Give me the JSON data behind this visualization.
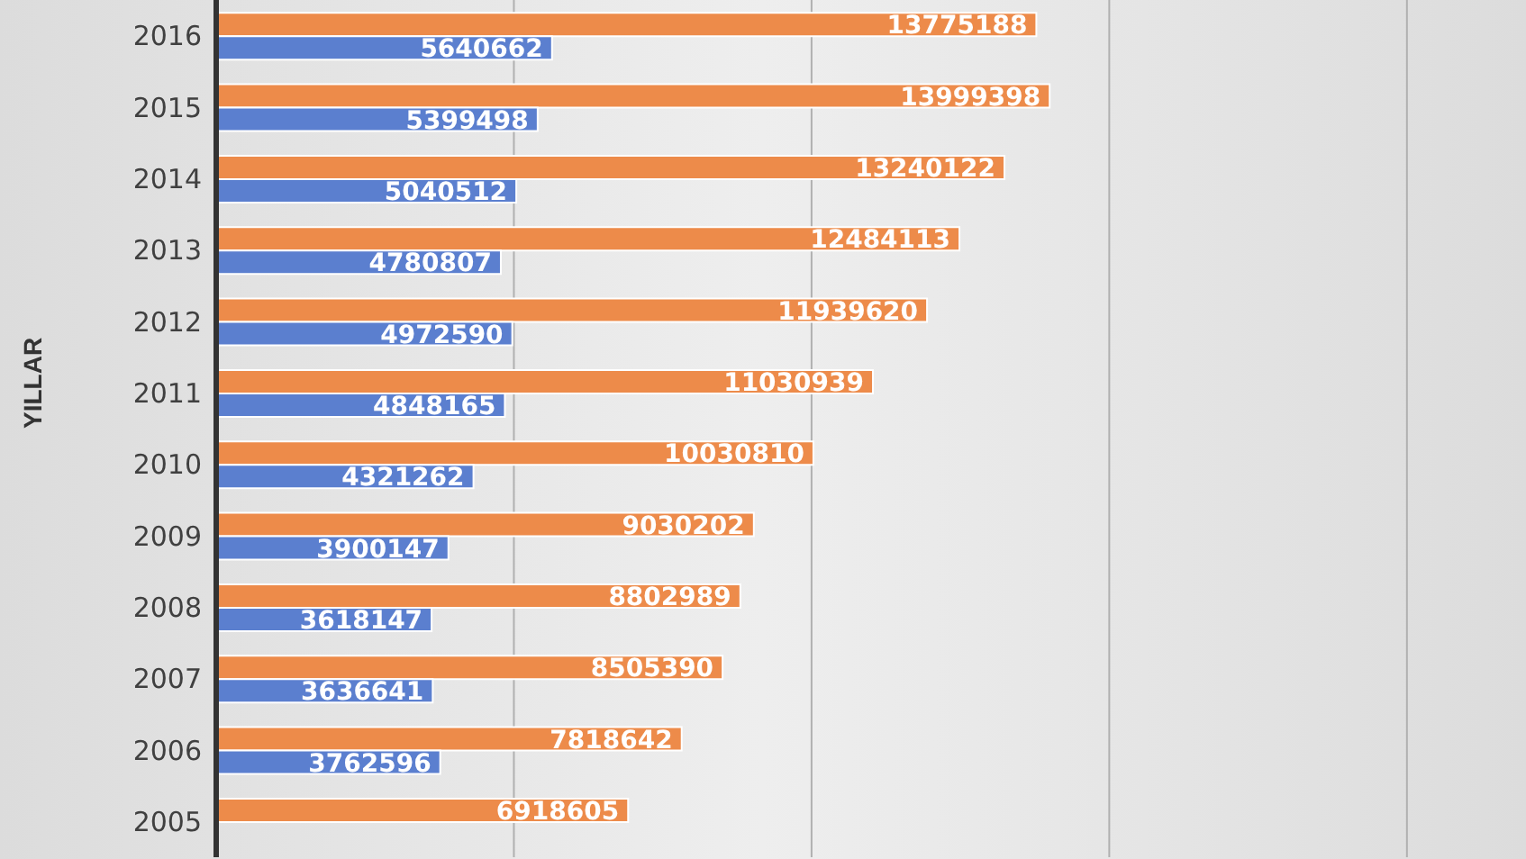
{
  "chart_data": {
    "type": "bar",
    "orientation": "horizontal",
    "ylabel": "YILLAR",
    "categories": [
      "2016",
      "2015",
      "2014",
      "2013",
      "2012",
      "2011",
      "2010",
      "2009",
      "2008",
      "2007",
      "2006",
      "2005"
    ],
    "series": [
      {
        "color": "#ed8b4a",
        "values": [
          13775188,
          13999398,
          13240122,
          12484113,
          11939620,
          11030939,
          10030810,
          9030202,
          8802989,
          8505390,
          7818642,
          6918605
        ]
      },
      {
        "color": "#5b7fcf",
        "values": [
          5640662,
          5399498,
          5040512,
          4780807,
          4972590,
          4848165,
          4321262,
          3900147,
          3618147,
          3636641,
          3762596,
          null
        ]
      }
    ],
    "xlim": [
      0,
      22000000
    ],
    "xticks": [
      {
        "value": 5000000,
        "label": null
      },
      {
        "value": 10000000,
        "label": null
      },
      {
        "value": 15000000,
        "label": null
      },
      {
        "value": 20000000,
        "label": null
      }
    ],
    "tick_labels": "y",
    "grid": "x",
    "data_labels": true
  }
}
